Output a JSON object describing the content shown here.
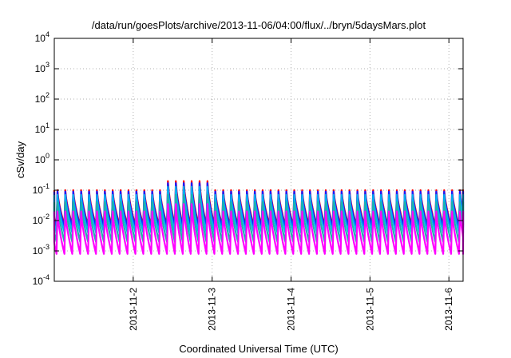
{
  "chart_data": {
    "type": "line",
    "title": "/data/run/goesPlots/archive/2013-11-06/04:00/flux/../bryn/5daysMars.plot",
    "xlabel": "Coordinated Universal Time (UTC)",
    "ylabel": "cSv/day",
    "yscale": "log",
    "ylim": [
      0.0001,
      10000
    ],
    "xlim_days": [
      1.0,
      6.18
    ],
    "grid": true,
    "x_tick_labels": [
      "2013-11-2",
      "2013-11-3",
      "2013-11-4",
      "2013-11-5",
      "2013-11-6"
    ],
    "x_tick_days": [
      2,
      3,
      4,
      5,
      6
    ],
    "y_tick_labels": [
      {
        "base": "10",
        "exp": "-4",
        "value": 0.0001
      },
      {
        "base": "10",
        "exp": "-3",
        "value": 0.001
      },
      {
        "base": "10",
        "exp": "-2",
        "value": 0.01
      },
      {
        "base": "10",
        "exp": "-1",
        "value": 0.1
      },
      {
        "base": "10",
        "exp": "0",
        "value": 1
      },
      {
        "base": "10",
        "exp": "1",
        "value": 10
      },
      {
        "base": "10",
        "exp": "2",
        "value": 100
      },
      {
        "base": "10",
        "exp": "3",
        "value": 1000
      },
      {
        "base": "10",
        "exp": "4",
        "value": 10000
      }
    ],
    "oscillation": {
      "period_days": 0.1,
      "first_peak_day": 1.04,
      "enhanced_peak_days": [
        2.45,
        2.55,
        2.65,
        2.75,
        2.85,
        2.95
      ]
    },
    "series": [
      {
        "color": "#ff0000",
        "peak": 0.1,
        "trough": 0.007,
        "enhanced_peak": 0.2
      },
      {
        "color": "#1a1aff",
        "peak": 0.09,
        "trough": 0.006,
        "enhanced_peak": 0.17
      },
      {
        "color": "#00b0f0",
        "peak": 0.07,
        "trough": 0.004,
        "enhanced_peak": 0.13
      },
      {
        "color": "#20b2aa",
        "peak": 0.04,
        "trough": 0.002,
        "enhanced_peak": 0.07
      },
      {
        "color": "#ff00ff",
        "peak": 0.02,
        "trough": 0.0008,
        "enhanced_peak": 0.035
      }
    ]
  }
}
